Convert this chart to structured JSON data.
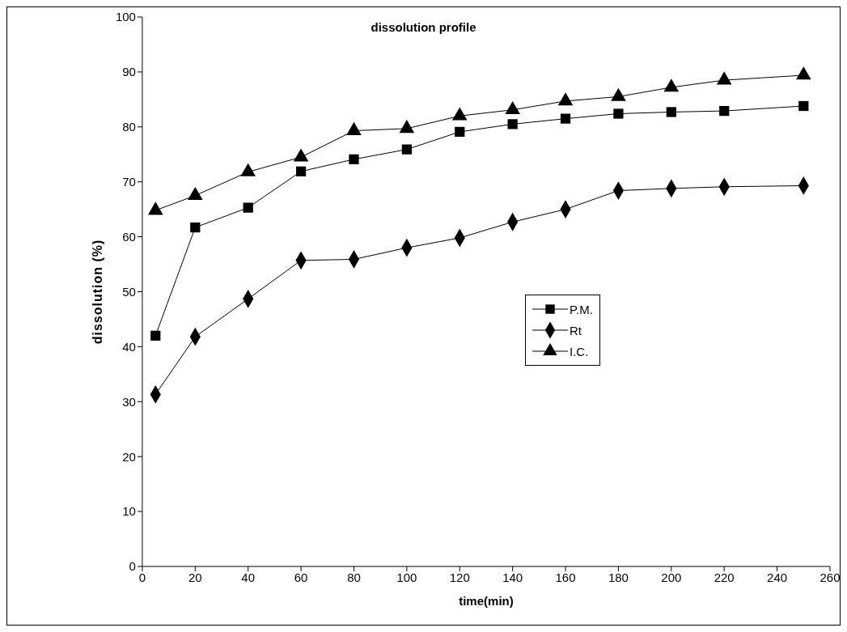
{
  "chart_data": {
    "type": "line",
    "title": "dissolution profile",
    "xlabel": "time(min)",
    "ylabel": "dissolution (%)",
    "x": [
      5,
      20,
      40,
      60,
      80,
      100,
      120,
      140,
      160,
      180,
      200,
      220,
      250
    ],
    "series": [
      {
        "name": "P.M.",
        "color": "#000000",
        "marker": "square",
        "values": [
          42,
          61.7,
          65.3,
          71.9,
          74.1,
          75.9,
          79.1,
          80.5,
          81.5,
          82.4,
          82.7,
          82.9,
          83.8
        ]
      },
      {
        "name": "Rt",
        "color": "#000000",
        "marker": "diamond",
        "values": [
          31.3,
          41.8,
          48.7,
          55.7,
          55.9,
          58,
          59.8,
          62.7,
          65,
          68.4,
          68.8,
          69.1,
          69.3
        ]
      },
      {
        "name": "I.C.",
        "color": "#000000",
        "marker": "triangle",
        "values": [
          64.8,
          67.5,
          71.8,
          74.5,
          79.3,
          79.7,
          82,
          83.1,
          84.7,
          85.5,
          87.2,
          88.5,
          89.4
        ]
      }
    ],
    "xlim": [
      0,
      260
    ],
    "xticks": [
      0,
      20,
      40,
      60,
      80,
      100,
      120,
      140,
      160,
      180,
      200,
      220,
      240,
      260
    ],
    "ylim": [
      0,
      100
    ],
    "yticks": [
      0,
      10,
      20,
      30,
      40,
      50,
      60,
      70,
      80,
      90,
      100
    ],
    "grid": false,
    "legend": "right",
    "line_style": "solid"
  }
}
